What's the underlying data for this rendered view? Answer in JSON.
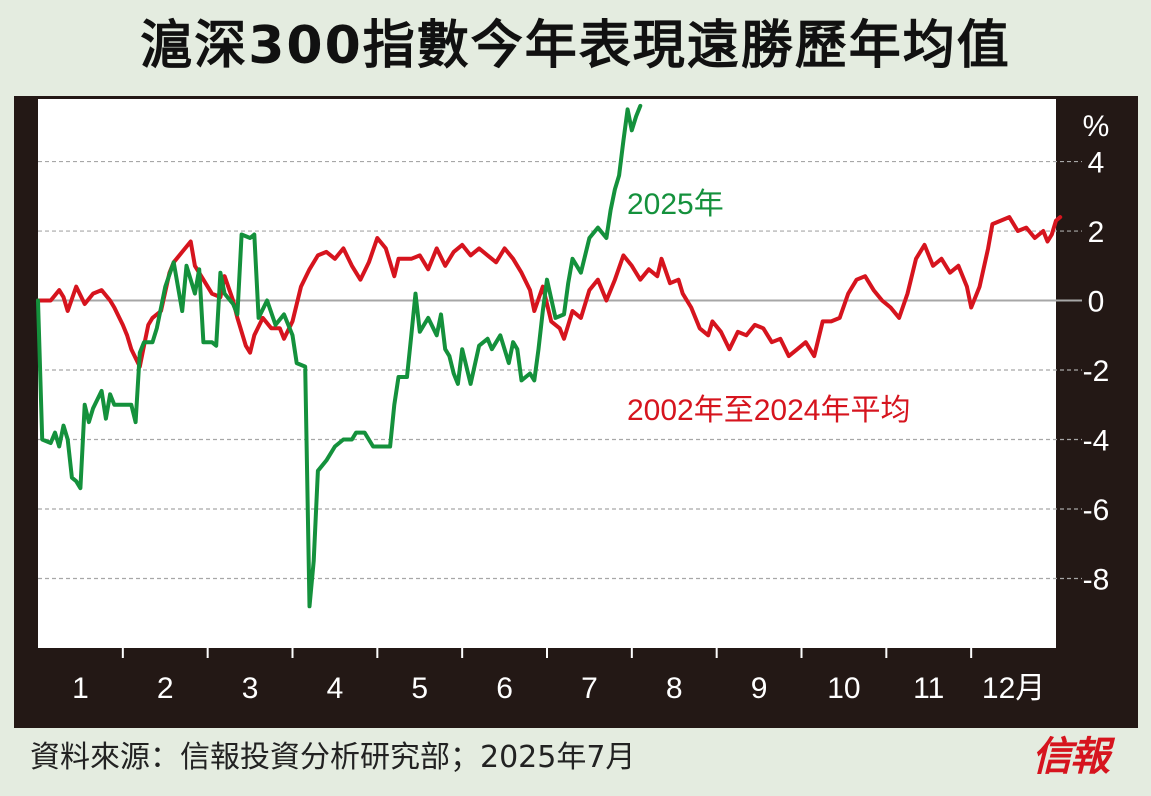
{
  "header": {
    "title": "滬深300指數今年表現遠勝歷年均值"
  },
  "footer": {
    "source": "資料來源：信報投資分析研究部；2025年7月",
    "brand": "信報"
  },
  "colors": {
    "background": "#e4ece0",
    "plot_background": "#ffffff",
    "frame": "#231815",
    "series_2025": "#14913c",
    "series_avg": "#d6141e",
    "grid": "#a7a7a7"
  },
  "chart_data": {
    "type": "line",
    "title": "滬深300指數今年表現遠勝歷年均值",
    "ylabel": "%",
    "xlabel": "",
    "ylim": [
      -10,
      5.8
    ],
    "xlim": [
      0,
      12
    ],
    "yticks": [
      4,
      2,
      0,
      -2,
      -4,
      -6,
      -8
    ],
    "ytick_labels": [
      "4",
      "2",
      "0",
      "-2",
      "-4",
      "-6",
      "-8"
    ],
    "x_tick_labels": [
      "1",
      "2",
      "3",
      "4",
      "5",
      "6",
      "7",
      "8",
      "9",
      "10",
      "11",
      "12月"
    ],
    "grid": "horizontal dashed",
    "legend": "inline labels",
    "series": [
      {
        "name": "2025年",
        "label_position": "upper-middle",
        "points": [
          [
            0.0,
            0.0
          ],
          [
            0.05,
            -4.0
          ],
          [
            0.15,
            -4.1
          ],
          [
            0.2,
            -3.8
          ],
          [
            0.25,
            -4.2
          ],
          [
            0.3,
            -3.6
          ],
          [
            0.35,
            -4.0
          ],
          [
            0.4,
            -5.1
          ],
          [
            0.45,
            -5.2
          ],
          [
            0.5,
            -5.4
          ],
          [
            0.55,
            -3.0
          ],
          [
            0.6,
            -3.5
          ],
          [
            0.65,
            -3.1
          ],
          [
            0.75,
            -2.6
          ],
          [
            0.8,
            -3.4
          ],
          [
            0.85,
            -2.7
          ],
          [
            0.9,
            -3.0
          ],
          [
            1.0,
            -3.0
          ],
          [
            1.1,
            -3.0
          ],
          [
            1.15,
            -3.5
          ],
          [
            1.2,
            -1.5
          ],
          [
            1.25,
            -1.2
          ],
          [
            1.35,
            -1.2
          ],
          [
            1.4,
            -0.8
          ],
          [
            1.5,
            0.4
          ],
          [
            1.6,
            1.1
          ],
          [
            1.7,
            -0.3
          ],
          [
            1.75,
            1.0
          ],
          [
            1.85,
            0.2
          ],
          [
            1.9,
            0.9
          ],
          [
            1.95,
            -1.2
          ],
          [
            2.05,
            -1.2
          ],
          [
            2.1,
            -1.3
          ],
          [
            2.15,
            0.8
          ],
          [
            2.2,
            0.2
          ],
          [
            2.3,
            -0.1
          ],
          [
            2.35,
            -0.4
          ],
          [
            2.4,
            1.9
          ],
          [
            2.5,
            1.8
          ],
          [
            2.55,
            1.9
          ],
          [
            2.6,
            -0.5
          ],
          [
            2.7,
            0.0
          ],
          [
            2.8,
            -0.7
          ],
          [
            2.9,
            -0.4
          ],
          [
            3.0,
            -1.0
          ],
          [
            3.05,
            -1.8
          ],
          [
            3.15,
            -1.9
          ],
          [
            3.2,
            -8.8
          ],
          [
            3.25,
            -7.5
          ],
          [
            3.3,
            -4.9
          ],
          [
            3.4,
            -4.6
          ],
          [
            3.5,
            -4.2
          ],
          [
            3.6,
            -4.0
          ],
          [
            3.7,
            -4.0
          ],
          [
            3.75,
            -3.8
          ],
          [
            3.85,
            -3.8
          ],
          [
            3.95,
            -4.2
          ],
          [
            4.05,
            -4.2
          ],
          [
            4.15,
            -4.2
          ],
          [
            4.2,
            -3.0
          ],
          [
            4.25,
            -2.2
          ],
          [
            4.35,
            -2.2
          ],
          [
            4.4,
            -1.0
          ],
          [
            4.45,
            0.2
          ],
          [
            4.5,
            -0.9
          ],
          [
            4.6,
            -0.5
          ],
          [
            4.7,
            -1.0
          ],
          [
            4.75,
            -0.4
          ],
          [
            4.8,
            -1.4
          ],
          [
            4.85,
            -1.6
          ],
          [
            4.9,
            -2.1
          ],
          [
            4.95,
            -2.4
          ],
          [
            5.0,
            -1.4
          ],
          [
            5.1,
            -2.4
          ],
          [
            5.2,
            -1.3
          ],
          [
            5.3,
            -1.1
          ],
          [
            5.35,
            -1.4
          ],
          [
            5.45,
            -1.0
          ],
          [
            5.55,
            -1.8
          ],
          [
            5.6,
            -1.2
          ],
          [
            5.65,
            -1.4
          ],
          [
            5.7,
            -2.3
          ],
          [
            5.8,
            -2.1
          ],
          [
            5.85,
            -2.3
          ],
          [
            5.9,
            -1.4
          ],
          [
            5.95,
            -0.3
          ],
          [
            6.0,
            0.6
          ],
          [
            6.1,
            -0.5
          ],
          [
            6.2,
            -0.4
          ],
          [
            6.25,
            0.5
          ],
          [
            6.3,
            1.2
          ],
          [
            6.4,
            0.8
          ],
          [
            6.5,
            1.8
          ],
          [
            6.6,
            2.1
          ],
          [
            6.7,
            1.8
          ],
          [
            6.75,
            2.6
          ],
          [
            6.8,
            3.2
          ],
          [
            6.85,
            3.6
          ],
          [
            6.9,
            4.6
          ],
          [
            6.95,
            5.5
          ],
          [
            7.0,
            4.9
          ],
          [
            7.05,
            5.3
          ],
          [
            7.1,
            5.6
          ]
        ]
      },
      {
        "name": "2002年至2024年平均",
        "label_position": "right-middle",
        "points": [
          [
            0.0,
            0.0
          ],
          [
            0.15,
            0.0
          ],
          [
            0.25,
            0.3
          ],
          [
            0.3,
            0.1
          ],
          [
            0.35,
            -0.3
          ],
          [
            0.45,
            0.4
          ],
          [
            0.55,
            -0.1
          ],
          [
            0.65,
            0.2
          ],
          [
            0.75,
            0.3
          ],
          [
            0.85,
            0.0
          ],
          [
            0.9,
            -0.2
          ],
          [
            1.0,
            -0.7
          ],
          [
            1.05,
            -1.0
          ],
          [
            1.1,
            -1.4
          ],
          [
            1.2,
            -1.9
          ],
          [
            1.25,
            -1.3
          ],
          [
            1.3,
            -0.7
          ],
          [
            1.35,
            -0.5
          ],
          [
            1.45,
            -0.3
          ],
          [
            1.55,
            0.8
          ],
          [
            1.6,
            1.1
          ],
          [
            1.7,
            1.4
          ],
          [
            1.8,
            1.7
          ],
          [
            1.85,
            1.0
          ],
          [
            1.95,
            0.6
          ],
          [
            2.05,
            0.2
          ],
          [
            2.15,
            0.1
          ],
          [
            2.2,
            0.7
          ],
          [
            2.3,
            0.0
          ],
          [
            2.35,
            -0.5
          ],
          [
            2.45,
            -1.3
          ],
          [
            2.5,
            -1.5
          ],
          [
            2.55,
            -1.0
          ],
          [
            2.65,
            -0.5
          ],
          [
            2.75,
            -0.8
          ],
          [
            2.85,
            -0.8
          ],
          [
            2.9,
            -1.1
          ],
          [
            3.0,
            -0.6
          ],
          [
            3.1,
            0.4
          ],
          [
            3.2,
            0.9
          ],
          [
            3.3,
            1.3
          ],
          [
            3.4,
            1.4
          ],
          [
            3.5,
            1.2
          ],
          [
            3.6,
            1.5
          ],
          [
            3.7,
            1.0
          ],
          [
            3.8,
            0.6
          ],
          [
            3.9,
            1.1
          ],
          [
            4.0,
            1.8
          ],
          [
            4.1,
            1.5
          ],
          [
            4.2,
            0.7
          ],
          [
            4.25,
            1.2
          ],
          [
            4.4,
            1.2
          ],
          [
            4.5,
            1.3
          ],
          [
            4.6,
            0.9
          ],
          [
            4.7,
            1.5
          ],
          [
            4.8,
            1.0
          ],
          [
            4.9,
            1.4
          ],
          [
            5.0,
            1.6
          ],
          [
            5.1,
            1.3
          ],
          [
            5.2,
            1.5
          ],
          [
            5.3,
            1.3
          ],
          [
            5.4,
            1.1
          ],
          [
            5.5,
            1.5
          ],
          [
            5.6,
            1.2
          ],
          [
            5.7,
            0.8
          ],
          [
            5.8,
            0.3
          ],
          [
            5.85,
            -0.3
          ],
          [
            5.95,
            0.4
          ],
          [
            6.05,
            -0.6
          ],
          [
            6.15,
            -0.8
          ],
          [
            6.2,
            -1.1
          ],
          [
            6.3,
            -0.3
          ],
          [
            6.4,
            -0.5
          ],
          [
            6.5,
            0.3
          ],
          [
            6.6,
            0.6
          ],
          [
            6.7,
            0.0
          ],
          [
            6.8,
            0.6
          ],
          [
            6.9,
            1.3
          ],
          [
            7.0,
            1.0
          ],
          [
            7.1,
            0.6
          ],
          [
            7.2,
            0.9
          ],
          [
            7.3,
            0.7
          ],
          [
            7.35,
            1.2
          ],
          [
            7.45,
            0.5
          ],
          [
            7.55,
            0.6
          ],
          [
            7.6,
            0.2
          ],
          [
            7.7,
            -0.2
          ],
          [
            7.8,
            -0.8
          ],
          [
            7.9,
            -1.0
          ],
          [
            7.95,
            -0.6
          ],
          [
            8.05,
            -0.9
          ],
          [
            8.15,
            -1.4
          ],
          [
            8.25,
            -0.9
          ],
          [
            8.35,
            -1.0
          ],
          [
            8.45,
            -0.7
          ],
          [
            8.55,
            -0.8
          ],
          [
            8.65,
            -1.2
          ],
          [
            8.75,
            -1.1
          ],
          [
            8.85,
            -1.6
          ],
          [
            8.95,
            -1.4
          ],
          [
            9.05,
            -1.2
          ],
          [
            9.15,
            -1.6
          ],
          [
            9.25,
            -0.6
          ],
          [
            9.35,
            -0.6
          ],
          [
            9.45,
            -0.5
          ],
          [
            9.55,
            0.2
          ],
          [
            9.65,
            0.6
          ],
          [
            9.75,
            0.7
          ],
          [
            9.85,
            0.3
          ],
          [
            9.95,
            0.0
          ],
          [
            10.05,
            -0.2
          ],
          [
            10.15,
            -0.5
          ],
          [
            10.25,
            0.2
          ],
          [
            10.35,
            1.2
          ],
          [
            10.45,
            1.6
          ],
          [
            10.55,
            1.0
          ],
          [
            10.65,
            1.2
          ],
          [
            10.75,
            0.8
          ],
          [
            10.85,
            1.0
          ],
          [
            10.95,
            0.4
          ],
          [
            11.0,
            -0.2
          ],
          [
            11.1,
            0.4
          ],
          [
            11.2,
            1.5
          ],
          [
            11.25,
            2.2
          ],
          [
            11.35,
            2.3
          ],
          [
            11.45,
            2.4
          ],
          [
            11.55,
            2.0
          ],
          [
            11.65,
            2.1
          ],
          [
            11.75,
            1.8
          ],
          [
            11.85,
            2.0
          ],
          [
            11.9,
            1.7
          ],
          [
            11.95,
            1.9
          ],
          [
            12.0,
            2.3
          ],
          [
            12.05,
            2.4
          ]
        ]
      }
    ]
  }
}
